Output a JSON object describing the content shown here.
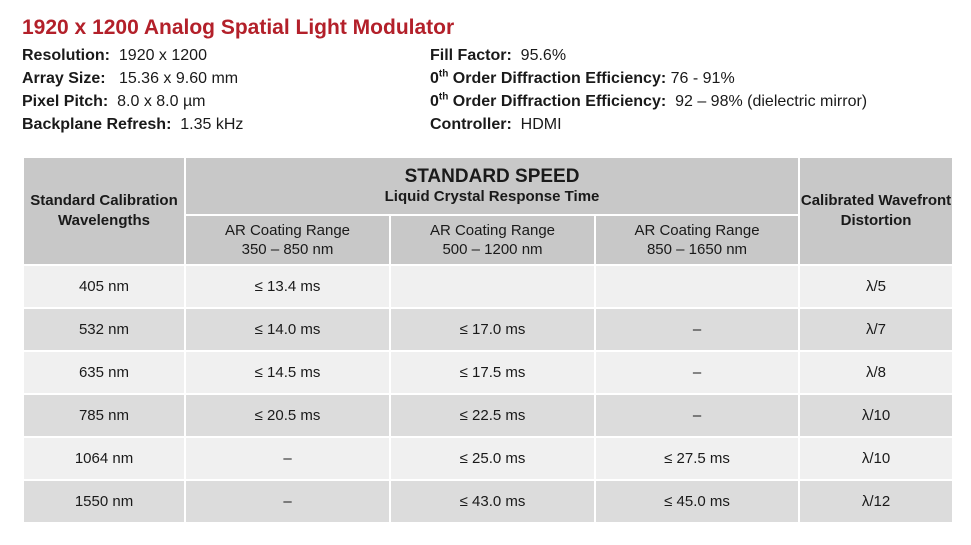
{
  "title": "1920 x 1200 Analog Spatial Light Modulator",
  "specs_left": [
    {
      "label": "Resolution:",
      "value": "1920 x 1200"
    },
    {
      "label": "Array Size:",
      "value": "15.36 x 9.60 mm"
    },
    {
      "label": "Pixel Pitch:",
      "value": "8.0 x 8.0 µm"
    },
    {
      "label": "Backplane Refresh:",
      "value": "1.35 kHz"
    }
  ],
  "specs_right": [
    {
      "label": "Fill Factor:",
      "value": "95.6%"
    },
    {
      "label_pre": "0",
      "label_sup": "th",
      "label_post": " Order Diffraction Efficiency:",
      "value": "76 - 91%"
    },
    {
      "label_pre": "0",
      "label_sup": "th",
      "label_post": " Order Diffraction Efficiency:",
      "value": "92 – 98% (dielectric mirror)"
    },
    {
      "label": "Controller:",
      "value": "HDMI"
    }
  ],
  "table": {
    "header_left": "Standard Calibration Wavelengths",
    "header_main": "STANDARD SPEED",
    "header_sub": "Liquid Crystal Response Time",
    "header_right": "Calibrated Wavefront Distortion",
    "ranges": [
      {
        "label": "AR Coating Range",
        "range": "350 – 850 nm"
      },
      {
        "label": "AR Coating Range",
        "range": "500 – 1200 nm"
      },
      {
        "label": "AR Coating Range",
        "range": "850 – 1650 nm"
      }
    ],
    "rows": [
      {
        "wavelength": "405 nm",
        "c1": "≤ 13.4 ms",
        "c2": "",
        "c3": "",
        "distortion": "λ/5"
      },
      {
        "wavelength": "532 nm",
        "c1": "≤ 14.0 ms",
        "c2": "≤ 17.0 ms",
        "c3": "–",
        "distortion": "λ/7"
      },
      {
        "wavelength": "635 nm",
        "c1": "≤ 14.5 ms",
        "c2": "≤ 17.5 ms",
        "c3": "–",
        "distortion": "λ/8"
      },
      {
        "wavelength": "785 nm",
        "c1": "≤ 20.5 ms",
        "c2": "≤ 22.5 ms",
        "c3": "–",
        "distortion": "λ/10"
      },
      {
        "wavelength": "1064 nm",
        "c1": "–",
        "c2": "≤ 25.0 ms",
        "c3": "≤ 27.5 ms",
        "distortion": "λ/10"
      },
      {
        "wavelength": "1550 nm",
        "c1": "–",
        "c2": "≤ 43.0 ms",
        "c3": "≤ 45.0 ms",
        "distortion": "λ/12"
      }
    ]
  }
}
